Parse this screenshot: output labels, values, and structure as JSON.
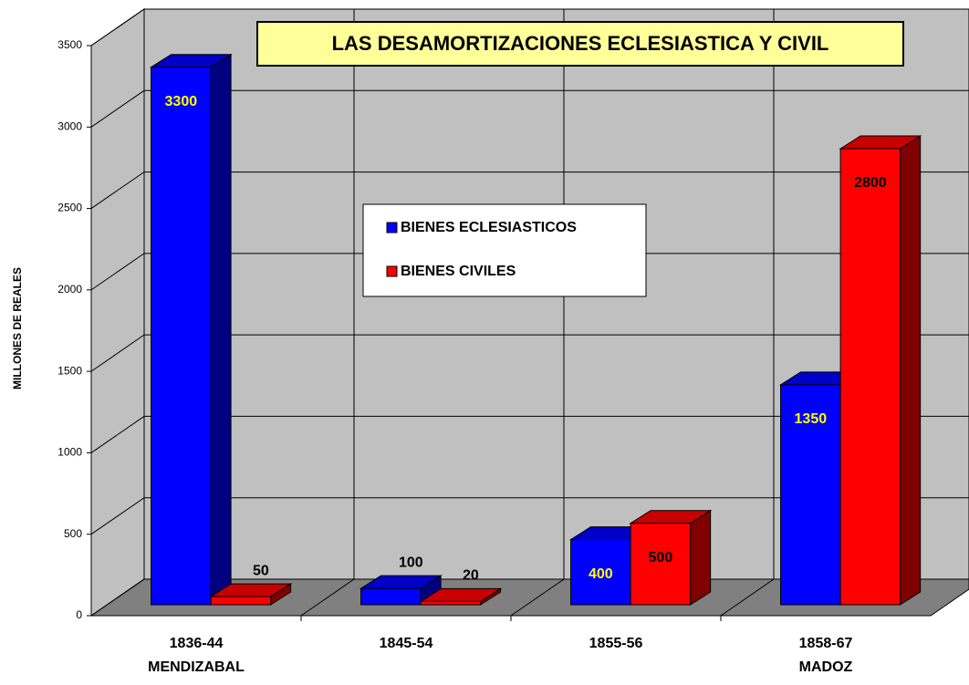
{
  "chart_data": {
    "type": "bar3d",
    "title": "LAS DESAMORTIZACIONES ECLESIASTICA Y CIVIL",
    "y_label": "MILLONES DE REALES",
    "categories": [
      [
        "1836-44",
        "MENDIZABAL"
      ],
      [
        "1845-54"
      ],
      [
        "1855-56"
      ],
      [
        "1858-67",
        "MADOZ"
      ]
    ],
    "series": [
      {
        "name": "BIENES ECLESIASTICOS",
        "color": "#0000ff",
        "side": "#000080",
        "top": "#0000c8",
        "label_color": "#ffff00",
        "values": [
          3300,
          100,
          400,
          1350
        ]
      },
      {
        "name": "BIENES CIVILES",
        "color": "#ff0000",
        "side": "#800000",
        "top": "#c80000",
        "label_color": "#000000",
        "values": [
          50,
          20,
          500,
          2800
        ]
      }
    ],
    "ylim": [
      0,
      3500
    ],
    "yticks": [
      0,
      500,
      1000,
      1500,
      2000,
      2500,
      3000,
      3500
    ],
    "grid": true
  }
}
